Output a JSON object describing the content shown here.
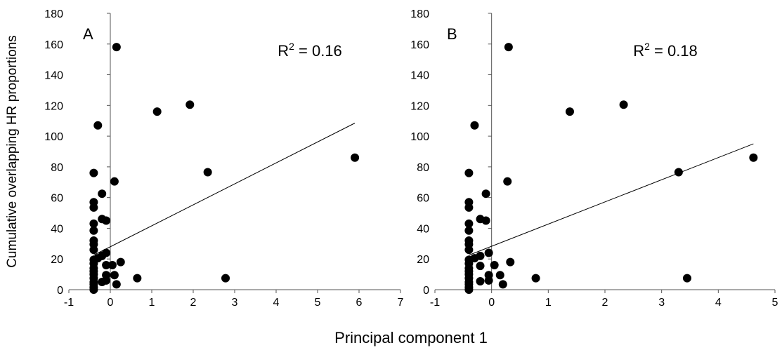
{
  "figure": {
    "ylabel": "Cumulative overlapping HR proportions",
    "xlabel": "Principal component 1"
  },
  "chart_data": [
    {
      "type": "scatter",
      "panel_label": "A",
      "r2_prefix": "R",
      "r2_exponent": "2",
      "r2_suffix": " = 0.16",
      "xlim": [
        -1,
        7
      ],
      "ylim": [
        0,
        180
      ],
      "xticks": [
        "-1",
        "0",
        "1",
        "2",
        "3",
        "4",
        "5",
        "6",
        "7"
      ],
      "yticks": [
        "0",
        "20",
        "40",
        "60",
        "80",
        "100",
        "120",
        "140",
        "160",
        "180"
      ],
      "grid": false,
      "trendline": {
        "x": [
          -0.4,
          5.9
        ],
        "y": [
          22.5,
          108.5
        ]
      },
      "points": [
        [
          0.15,
          158
        ],
        [
          1.13,
          116
        ],
        [
          1.92,
          120.5
        ],
        [
          -0.3,
          107
        ],
        [
          5.9,
          86
        ],
        [
          2.35,
          76.5
        ],
        [
          -0.4,
          76
        ],
        [
          0.1,
          70.5
        ],
        [
          -0.2,
          62.5
        ],
        [
          -0.4,
          57
        ],
        [
          -0.4,
          53.5
        ],
        [
          -0.2,
          46
        ],
        [
          -0.1,
          45
        ],
        [
          -0.4,
          43
        ],
        [
          -0.4,
          38.5
        ],
        [
          -0.4,
          32
        ],
        [
          -0.4,
          29.5
        ],
        [
          -0.4,
          26
        ],
        [
          -0.1,
          24
        ],
        [
          -0.2,
          22
        ],
        [
          -0.3,
          20.5
        ],
        [
          -0.4,
          19.5
        ],
        [
          0.25,
          18
        ],
        [
          -0.4,
          17
        ],
        [
          -0.1,
          16
        ],
        [
          0.05,
          16
        ],
        [
          -0.4,
          14
        ],
        [
          -0.4,
          12
        ],
        [
          -0.4,
          10
        ],
        [
          -0.1,
          9.5
        ],
        [
          0.1,
          9.5
        ],
        [
          -0.4,
          7.5
        ],
        [
          0.65,
          7.5
        ],
        [
          2.78,
          7.5
        ],
        [
          -0.1,
          6
        ],
        [
          -0.2,
          5
        ],
        [
          -0.4,
          5
        ],
        [
          -0.4,
          3.5
        ],
        [
          0.15,
          3.5
        ],
        [
          -0.4,
          1.5
        ],
        [
          -0.4,
          0
        ]
      ]
    },
    {
      "type": "scatter",
      "panel_label": "B",
      "r2_prefix": "R",
      "r2_exponent": "2",
      "r2_suffix": " = 0.18",
      "xlim": [
        -1,
        5
      ],
      "ylim": [
        0,
        180
      ],
      "xticks": [
        "-1",
        "0",
        "1",
        "2",
        "3",
        "4",
        "5"
      ],
      "yticks": [
        "0",
        "20",
        "40",
        "60",
        "80",
        "100",
        "120",
        "140",
        "160",
        "180"
      ],
      "grid": false,
      "trendline": {
        "x": [
          -0.4,
          4.62
        ],
        "y": [
          22.5,
          95
        ]
      },
      "points": [
        [
          0.3,
          158
        ],
        [
          1.38,
          116
        ],
        [
          2.33,
          120.5
        ],
        [
          -0.3,
          107
        ],
        [
          4.62,
          86
        ],
        [
          3.3,
          76.5
        ],
        [
          -0.4,
          76
        ],
        [
          0.28,
          70.5
        ],
        [
          -0.1,
          62.5
        ],
        [
          -0.4,
          57
        ],
        [
          -0.4,
          53.5
        ],
        [
          -0.2,
          46
        ],
        [
          -0.1,
          45
        ],
        [
          -0.4,
          43
        ],
        [
          -0.4,
          38.5
        ],
        [
          -0.4,
          32
        ],
        [
          -0.4,
          29.5
        ],
        [
          -0.4,
          26
        ],
        [
          -0.05,
          24
        ],
        [
          -0.2,
          22
        ],
        [
          -0.3,
          20.5
        ],
        [
          -0.4,
          19.5
        ],
        [
          0.33,
          18
        ],
        [
          -0.4,
          17
        ],
        [
          -0.2,
          15.5
        ],
        [
          0.05,
          16
        ],
        [
          -0.4,
          14
        ],
        [
          -0.4,
          12
        ],
        [
          -0.4,
          10
        ],
        [
          0.15,
          9.5
        ],
        [
          -0.05,
          9.5
        ],
        [
          -0.4,
          7.5
        ],
        [
          0.78,
          7.5
        ],
        [
          3.45,
          7.5
        ],
        [
          -0.05,
          6
        ],
        [
          -0.2,
          5.5
        ],
        [
          -0.4,
          5
        ],
        [
          -0.4,
          3.5
        ],
        [
          0.2,
          3.5
        ],
        [
          -0.4,
          1.5
        ],
        [
          -0.4,
          0
        ]
      ]
    }
  ]
}
